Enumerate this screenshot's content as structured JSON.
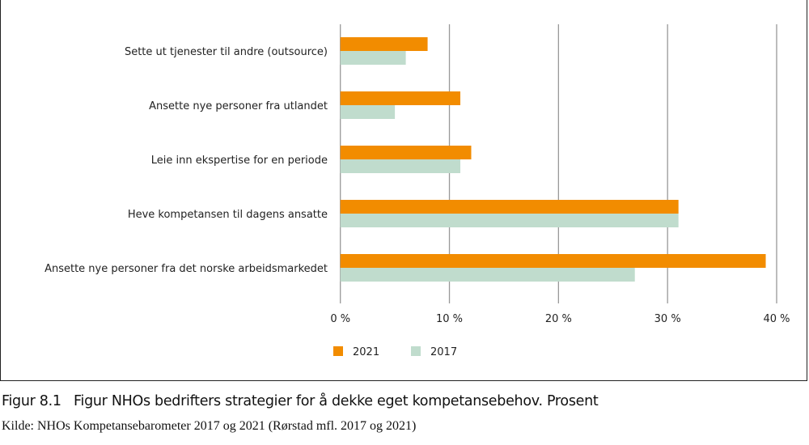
{
  "chart_data": {
    "type": "bar",
    "orientation": "horizontal",
    "categories": [
      "Sette ut tjenester til andre (outsource)",
      "Ansette nye personer fra utlandet",
      "Leie inn ekspertise for en periode",
      "Heve kompetansen til dagens ansatte",
      "Ansette nye personer fra det norske arbeidsmarkedet"
    ],
    "series": [
      {
        "name": "2021",
        "values": [
          8,
          11,
          12,
          31,
          39
        ],
        "color": "#f28c00"
      },
      {
        "name": "2017",
        "values": [
          6,
          5,
          11,
          31,
          27
        ],
        "color": "#c0dccd"
      }
    ],
    "xlim": [
      0,
      40
    ],
    "xticks": [
      "0 %",
      "10 %",
      "20 %",
      "30 %",
      "40 %"
    ],
    "grid": "vertical",
    "legend": "bottom-center"
  },
  "caption": {
    "number": "Figur 8.1",
    "title": "Figur NHOs bedrifters strategier for å dekke eget kompetansebehov. Prosent"
  },
  "source": "Kilde: NHOs Kompetansebarometer 2017 og 2021 (Rørstad mfl. 2017 og 2021)"
}
